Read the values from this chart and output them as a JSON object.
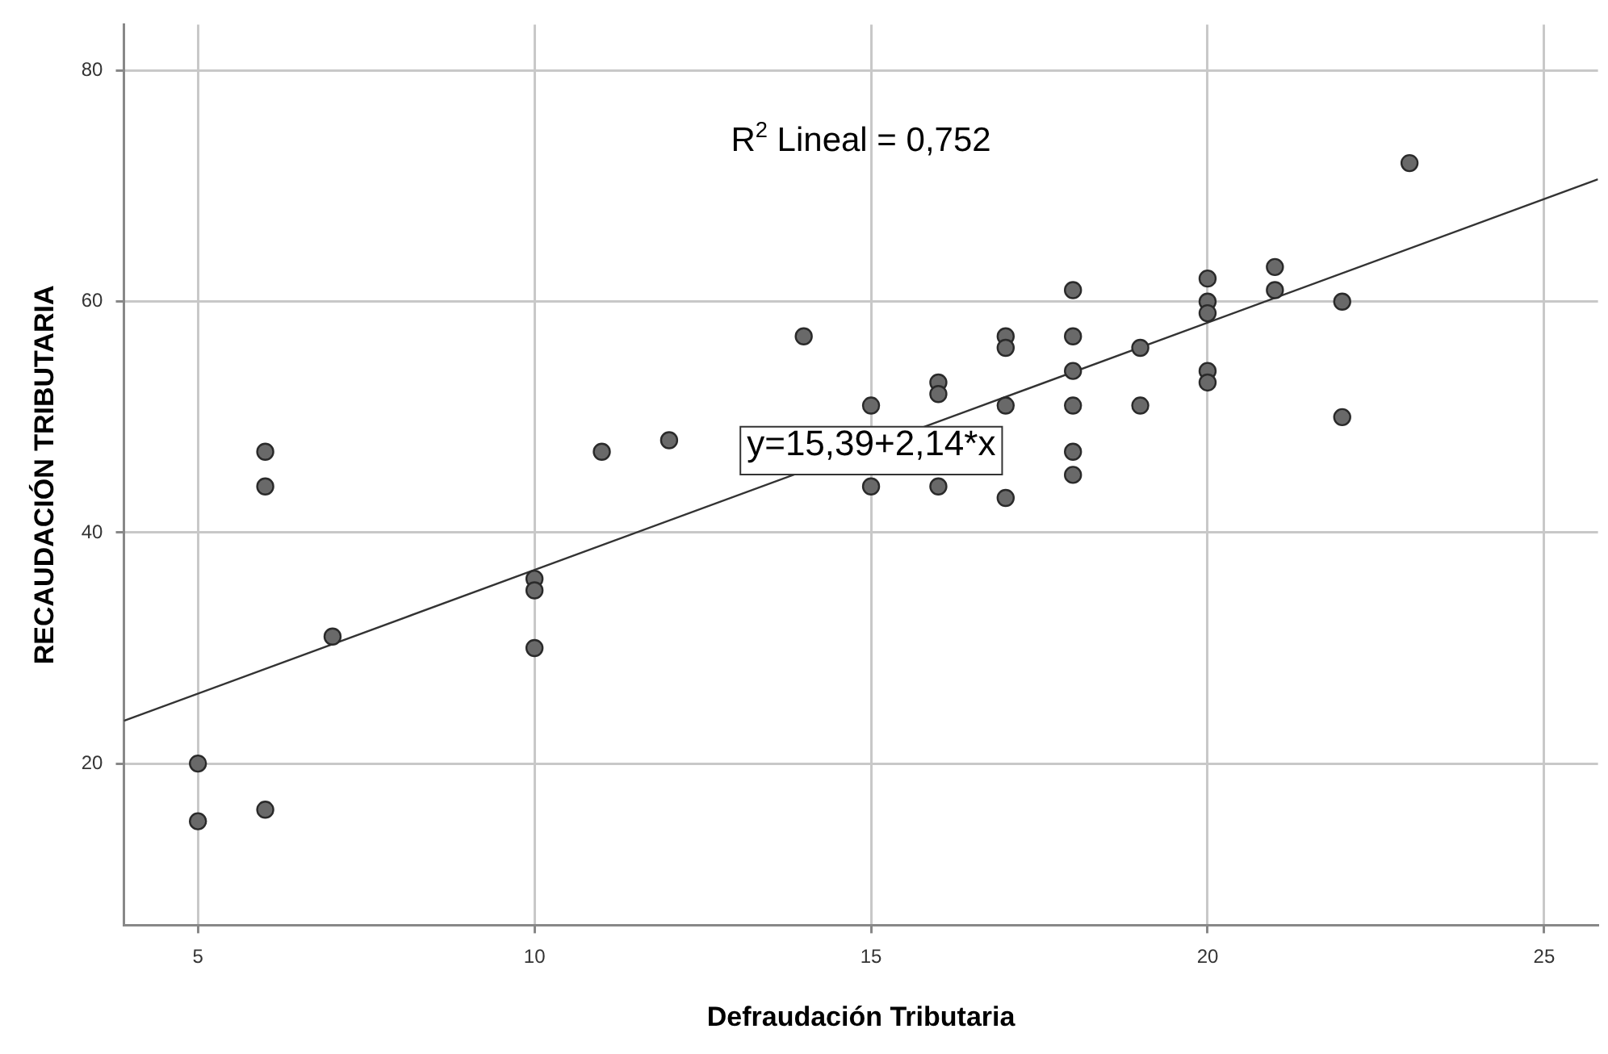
{
  "chart_data": {
    "type": "scatter",
    "xlabel": "Defraudación Tributaria",
    "ylabel": "RECAUDACIÓN TRIBUTARIA",
    "annotations": [
      "R$^{2}$ Lineal = 0,752",
      "y=15,39+2,14*x"
    ],
    "xlim": [
      3.9,
      25.8
    ],
    "xticks": [
      5,
      10,
      15,
      20,
      25
    ],
    "ylim": [
      6,
      84
    ],
    "yticks": [
      20,
      40,
      60,
      80
    ],
    "grid": true,
    "marker": "circle",
    "series": [
      {
        "type": "scatter",
        "color": "#696969",
        "x": [
          5,
          5,
          6,
          6,
          6,
          7,
          10,
          10,
          10,
          11,
          12,
          14,
          15,
          15,
          16,
          16,
          16,
          17,
          17,
          17,
          17,
          18,
          18,
          18,
          18,
          18,
          18,
          19,
          19,
          20,
          20,
          20,
          20,
          20,
          21,
          21,
          22,
          22,
          23
        ],
        "values": [
          20,
          15,
          47,
          44,
          16,
          31,
          36,
          35,
          30,
          47,
          48,
          57,
          51,
          44,
          53,
          52,
          44,
          57,
          56,
          51,
          43,
          61,
          57,
          54,
          51,
          47,
          45,
          56,
          51,
          62,
          60,
          59,
          54,
          53,
          63,
          61,
          60,
          50,
          72
        ]
      },
      {
        "type": "line",
        "color": "#333333",
        "marker": "none",
        "x": [
          3.9,
          25.8
        ],
        "values": [
          23.7,
          70.6
        ]
      }
    ]
  }
}
